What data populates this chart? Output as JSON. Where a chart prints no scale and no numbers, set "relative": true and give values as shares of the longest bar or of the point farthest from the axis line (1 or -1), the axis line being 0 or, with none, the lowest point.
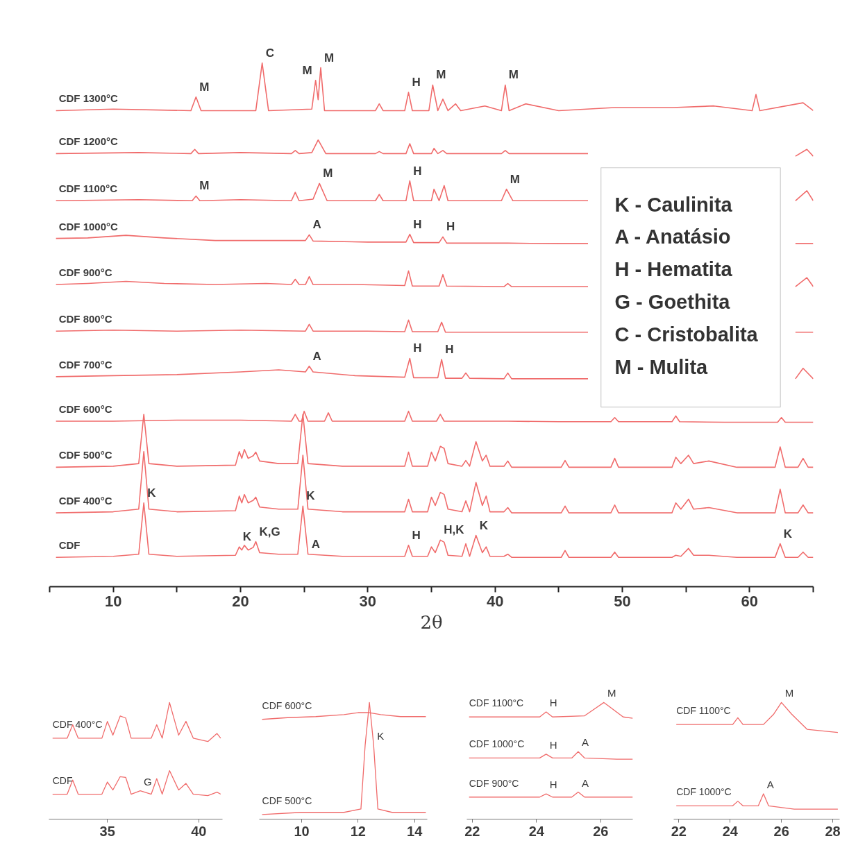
{
  "chart_data": [
    {
      "type": "line",
      "relative": true,
      "tick_labels": "x",
      "xlabel": "2θ",
      "xlim": [
        5,
        65
      ],
      "xticks": [
        {
          "value": 5,
          "label": null
        },
        10,
        {
          "value": 15,
          "label": null
        },
        20,
        {
          "value": 25,
          "label": null
        },
        30,
        {
          "value": 35,
          "label": null
        },
        40,
        {
          "value": 45,
          "label": null
        },
        50,
        {
          "value": 55,
          "label": null
        },
        60,
        {
          "value": 65,
          "label": null
        }
      ],
      "series": [
        {
          "name": "CDF 1300°C",
          "color": "#f06b6b",
          "x": [
            5.5,
            10,
            16.1,
            16.5,
            16.9,
            21.2,
            21.7,
            22.2,
            25.6,
            25.9,
            26.1,
            26.3,
            26.6,
            30.6,
            30.9,
            31.2,
            32.9,
            33.2,
            33.5,
            34.8,
            35.1,
            35.5,
            35.9,
            36.3,
            36.9,
            37.3,
            39.2,
            40.5,
            40.8,
            41.1,
            42.4,
            45,
            49.4,
            54,
            57.2,
            60.2,
            60.5,
            60.8,
            64.2,
            65
          ],
          "values": [
            0.909,
            0.912,
            0.909,
            0.935,
            0.909,
            0.909,
            1.0,
            0.909,
            0.912,
            0.967,
            0.93,
            0.991,
            0.909,
            0.909,
            0.922,
            0.909,
            0.909,
            0.944,
            0.909,
            0.909,
            0.958,
            0.909,
            0.931,
            0.909,
            0.922,
            0.909,
            0.918,
            0.909,
            0.958,
            0.909,
            0.922,
            0.909,
            0.915,
            0.915,
            0.918,
            0.909,
            0.94,
            0.909,
            0.924,
            0.909
          ]
        },
        {
          "name": "CDF 1200°C",
          "color": "#f06b6b",
          "x": [
            5.5,
            12,
            16.1,
            16.4,
            16.7,
            20,
            24.0,
            24.3,
            24.6,
            25.6,
            26.1,
            26.7,
            30.6,
            30.9,
            31.2,
            33.0,
            33.3,
            33.6,
            35.0,
            35.2,
            35.5,
            35.9,
            36.2,
            40.5,
            40.8,
            41.1,
            45,
            47.3,
            47.5,
            63.6,
            64.5,
            65
          ],
          "values": [
            0.827,
            0.829,
            0.827,
            0.835,
            0.827,
            0.829,
            0.827,
            0.833,
            0.827,
            0.829,
            0.853,
            0.827,
            0.827,
            0.831,
            0.827,
            0.827,
            0.846,
            0.827,
            0.827,
            0.837,
            0.827,
            0.833,
            0.827,
            0.827,
            0.833,
            0.827,
            0.827,
            0.827,
            null,
            0.822,
            0.835,
            0.822
          ]
        },
        {
          "name": "CDF 1100°C",
          "color": "#f06b6b",
          "x": [
            5.5,
            12,
            16.2,
            16.5,
            16.8,
            20,
            24.0,
            24.3,
            24.6,
            25.7,
            26.2,
            26.8,
            30.6,
            30.9,
            31.2,
            33.0,
            33.3,
            33.6,
            35.0,
            35.2,
            35.6,
            36.0,
            36.3,
            40.5,
            40.9,
            41.4,
            45,
            47.3,
            47.5,
            63.6,
            64.5,
            65
          ],
          "values": [
            0.737,
            0.739,
            0.737,
            0.746,
            0.737,
            0.739,
            0.737,
            0.753,
            0.737,
            0.74,
            0.77,
            0.737,
            0.737,
            0.749,
            0.737,
            0.737,
            0.775,
            0.737,
            0.737,
            0.759,
            0.737,
            0.766,
            0.737,
            0.737,
            0.759,
            0.737,
            0.737,
            0.737,
            null,
            0.737,
            0.756,
            0.737
          ]
        },
        {
          "name": "CDF 1000°C",
          "color": "#f06b6b",
          "x": [
            5.5,
            8,
            11,
            14,
            18,
            22,
            25.1,
            25.4,
            25.7,
            30,
            33.0,
            33.3,
            33.6,
            35.6,
            35.9,
            36.2,
            41,
            45,
            47.3,
            47.5,
            63.6,
            65
          ],
          "values": [
            0.665,
            0.666,
            0.671,
            0.666,
            0.661,
            0.661,
            0.661,
            0.672,
            0.66,
            0.658,
            0.658,
            0.673,
            0.657,
            0.657,
            0.668,
            0.656,
            0.656,
            0.655,
            0.655,
            null,
            0.655,
            0.655
          ]
        },
        {
          "name": "CDF 900°C",
          "color": "#f06b6b",
          "x": [
            5.5,
            8,
            11,
            14,
            18,
            22,
            24.0,
            24.3,
            24.6,
            25.1,
            25.4,
            25.7,
            29,
            32.9,
            33.2,
            33.5,
            35.6,
            35.9,
            36.2,
            40.7,
            41.0,
            41.3,
            45,
            47.3,
            47.5,
            63.6,
            64.5,
            65
          ],
          "values": [
            0.577,
            0.579,
            0.583,
            0.579,
            0.577,
            0.579,
            0.577,
            0.587,
            0.577,
            0.577,
            0.592,
            0.577,
            0.577,
            0.575,
            0.603,
            0.574,
            0.574,
            0.596,
            0.574,
            0.573,
            0.579,
            0.573,
            0.573,
            0.573,
            null,
            0.573,
            0.59,
            0.573
          ]
        },
        {
          "name": "CDF 800°C",
          "color": "#f06b6b",
          "x": [
            5.5,
            10,
            15,
            20,
            25.1,
            25.4,
            25.7,
            30,
            32.9,
            33.2,
            33.5,
            35.5,
            35.8,
            36.1,
            41,
            47.3,
            47.5,
            63.6,
            65
          ],
          "values": [
            0.488,
            0.49,
            0.488,
            0.49,
            0.488,
            0.501,
            0.488,
            0.488,
            0.487,
            0.509,
            0.487,
            0.487,
            0.505,
            0.486,
            0.486,
            0.486,
            null,
            0.486,
            0.486
          ]
        },
        {
          "name": "CDF 700°C",
          "color": "#f06b6b",
          "x": [
            5.5,
            10,
            15,
            20,
            23,
            25.1,
            25.4,
            25.7,
            29,
            32.9,
            33.3,
            33.6,
            35.5,
            35.8,
            36.1,
            37.4,
            37.7,
            38,
            40.7,
            41,
            41.3,
            45,
            47.3,
            47.5,
            63.6,
            64.2,
            65
          ],
          "values": [
            0.401,
            0.403,
            0.405,
            0.41,
            0.414,
            0.41,
            0.421,
            0.41,
            0.403,
            0.4,
            0.436,
            0.399,
            0.399,
            0.434,
            0.398,
            0.398,
            0.408,
            0.398,
            0.397,
            0.408,
            0.397,
            0.397,
            0.397,
            null,
            0.397,
            0.417,
            0.397
          ]
        },
        {
          "name": "CDF 600°C",
          "color": "#f06b6b",
          "x": [
            5.5,
            10,
            15,
            20,
            24.0,
            24.3,
            24.6,
            24.8,
            25.0,
            25.3,
            26.6,
            26.9,
            27.2,
            30,
            32.9,
            33.2,
            33.5,
            35.4,
            35.7,
            36.0,
            41,
            45,
            49.1,
            49.4,
            49.7,
            53.9,
            54.2,
            54.5,
            58,
            62.2,
            62.5,
            62.8,
            65
          ],
          "values": [
            0.316,
            0.316,
            0.318,
            0.318,
            0.316,
            0.329,
            0.316,
            0.316,
            0.335,
            0.316,
            0.316,
            0.332,
            0.316,
            0.316,
            0.316,
            0.335,
            0.316,
            0.316,
            0.329,
            0.316,
            0.316,
            0.315,
            0.315,
            0.323,
            0.315,
            0.315,
            0.326,
            0.315,
            0.314,
            0.314,
            0.323,
            0.314,
            0.314
          ]
        },
        {
          "name": "CDF 500°C",
          "color": "#f06b6b",
          "x": [
            5.5,
            10,
            12.0,
            12.4,
            12.8,
            15,
            19.6,
            19.9,
            20.1,
            20.3,
            20.6,
            21.0,
            21.2,
            21.5,
            23,
            24.5,
            24.9,
            25.3,
            28,
            32.9,
            33.2,
            33.5,
            34.7,
            35.0,
            35.3,
            35.7,
            36.0,
            36.3,
            37.4,
            37.7,
            38.0,
            38.5,
            39.0,
            39.3,
            39.6,
            40.7,
            41,
            41.3,
            45.2,
            45.5,
            45.8,
            49.1,
            49.4,
            49.7,
            53.9,
            54.2,
            54.6,
            55.2,
            55.6,
            56.8,
            59,
            62.0,
            62.4,
            62.8,
            63.8,
            64.2,
            64.6,
            65
          ],
          "values": [
            0.228,
            0.23,
            0.235,
            0.329,
            0.235,
            0.23,
            0.232,
            0.258,
            0.245,
            0.262,
            0.245,
            0.25,
            0.257,
            0.24,
            0.235,
            0.235,
            0.329,
            0.235,
            0.23,
            0.23,
            0.257,
            0.23,
            0.23,
            0.257,
            0.24,
            0.268,
            0.264,
            0.235,
            0.23,
            0.241,
            0.23,
            0.277,
            0.24,
            0.251,
            0.23,
            0.23,
            0.24,
            0.228,
            0.228,
            0.241,
            0.228,
            0.228,
            0.245,
            0.228,
            0.228,
            0.247,
            0.235,
            0.251,
            0.235,
            0.24,
            0.228,
            0.228,
            0.267,
            0.228,
            0.228,
            0.245,
            0.228,
            0.228
          ]
        },
        {
          "name": "CDF 400°C",
          "color": "#f06b6b",
          "x": [
            5.5,
            10,
            12.0,
            12.4,
            12.8,
            15,
            19.6,
            19.9,
            20.1,
            20.3,
            20.6,
            21.0,
            21.2,
            21.5,
            23,
            24.5,
            24.9,
            25.3,
            28,
            32.9,
            33.2,
            33.5,
            34.7,
            35.0,
            35.3,
            35.7,
            36.0,
            36.3,
            37.4,
            37.7,
            38.0,
            38.5,
            39.0,
            39.3,
            39.6,
            40.7,
            41,
            41.3,
            45.2,
            45.5,
            45.8,
            49.1,
            49.4,
            49.7,
            53.9,
            54.2,
            54.6,
            55.2,
            55.6,
            56.8,
            59,
            62.0,
            62.4,
            62.8,
            63.8,
            64.2,
            64.6,
            65
          ],
          "values": [
            0.141,
            0.143,
            0.148,
            0.258,
            0.148,
            0.143,
            0.145,
            0.173,
            0.16,
            0.176,
            0.16,
            0.165,
            0.171,
            0.152,
            0.148,
            0.148,
            0.251,
            0.148,
            0.143,
            0.143,
            0.167,
            0.143,
            0.143,
            0.171,
            0.155,
            0.18,
            0.176,
            0.148,
            0.143,
            0.164,
            0.143,
            0.199,
            0.155,
            0.173,
            0.143,
            0.143,
            0.151,
            0.141,
            0.141,
            0.154,
            0.141,
            0.141,
            0.156,
            0.141,
            0.141,
            0.16,
            0.148,
            0.167,
            0.148,
            0.151,
            0.141,
            0.141,
            0.186,
            0.141,
            0.141,
            0.156,
            0.141,
            0.141
          ]
        },
        {
          "name": "CDF",
          "color": "#f06b6b",
          "x": [
            5.5,
            10,
            12.0,
            12.4,
            12.8,
            15,
            19.6,
            19.9,
            20.1,
            20.3,
            20.6,
            21.0,
            21.2,
            21.5,
            23,
            24.5,
            24.9,
            25.3,
            28,
            32.9,
            33.2,
            33.5,
            34.7,
            35.0,
            35.3,
            35.7,
            36.0,
            36.3,
            37.4,
            37.7,
            38.0,
            38.5,
            39.0,
            39.3,
            39.6,
            40.7,
            41,
            41.3,
            45.2,
            45.5,
            45.8,
            49.1,
            49.4,
            49.7,
            53.9,
            54.2,
            54.6,
            55.2,
            55.6,
            56.8,
            59,
            62.0,
            62.4,
            62.8,
            63.8,
            64.2,
            64.6,
            65
          ],
          "values": [
            0.056,
            0.058,
            0.062,
            0.16,
            0.062,
            0.058,
            0.06,
            0.076,
            0.07,
            0.079,
            0.07,
            0.075,
            0.086,
            0.065,
            0.062,
            0.062,
            0.154,
            0.062,
            0.058,
            0.058,
            0.079,
            0.058,
            0.058,
            0.076,
            0.065,
            0.089,
            0.085,
            0.06,
            0.058,
            0.082,
            0.058,
            0.098,
            0.065,
            0.076,
            0.058,
            0.058,
            0.062,
            0.056,
            0.056,
            0.069,
            0.056,
            0.056,
            0.066,
            0.056,
            0.056,
            0.06,
            0.058,
            0.073,
            0.06,
            0.06,
            0.056,
            0.056,
            0.082,
            0.056,
            0.056,
            0.066,
            0.056,
            0.056
          ]
        }
      ],
      "annotations": [
        {
          "text": "M",
          "x": 16.5,
          "y": 0.935
        },
        {
          "text": "C",
          "x": 21.7,
          "y": 1.0
        },
        {
          "text": "M",
          "x": 25.9,
          "y": 0.967
        },
        {
          "text": "M",
          "x": 26.3,
          "y": 0.991
        },
        {
          "text": "H",
          "x": 33.2,
          "y": 0.944
        },
        {
          "text": "M",
          "x": 35.1,
          "y": 0.958
        },
        {
          "text": "M",
          "x": 40.8,
          "y": 0.958
        },
        {
          "text": "M",
          "x": 16.5,
          "y": 0.746
        },
        {
          "text": "M",
          "x": 26.2,
          "y": 0.77
        },
        {
          "text": "H",
          "x": 33.3,
          "y": 0.775
        },
        {
          "text": "M",
          "x": 40.9,
          "y": 0.759
        },
        {
          "text": "A",
          "x": 25.4,
          "y": 0.672
        },
        {
          "text": "H",
          "x": 33.3,
          "y": 0.673
        },
        {
          "text": "H",
          "x": 35.9,
          "y": 0.668
        },
        {
          "text": "A",
          "x": 25.4,
          "y": 0.421
        },
        {
          "text": "H",
          "x": 33.3,
          "y": 0.436
        },
        {
          "text": "H",
          "x": 35.8,
          "y": 0.434
        },
        {
          "text": "K",
          "x": 12.4,
          "y": 0.16
        },
        {
          "text": "K",
          "x": 19.9,
          "y": 0.076
        },
        {
          "text": "K,G",
          "x": 21.2,
          "y": 0.086
        },
        {
          "text": "K",
          "x": 24.9,
          "y": 0.154
        },
        {
          "text": "A",
          "x": 25.3,
          "y": 0.062
        },
        {
          "text": "H",
          "x": 33.2,
          "y": 0.079
        },
        {
          "text": "H,K",
          "x": 35.7,
          "y": 0.089
        },
        {
          "text": "K",
          "x": 38.5,
          "y": 0.098
        },
        {
          "text": "K",
          "x": 62.4,
          "y": 0.082
        },
        "K - Caulinita",
        "A - Anatásio",
        "H - Hematita",
        "G - Goethita",
        "C - Cristobalita",
        "M - Mulita"
      ]
    },
    {
      "type": "line",
      "relative": true,
      "tick_labels": "x",
      "xlim": [
        31.8,
        41.3
      ],
      "xticks": [
        35,
        40
      ],
      "series": [
        {
          "name": "CDF 400°C",
          "color": "#f06b6b",
          "x": [
            32,
            32.8,
            33.1,
            33.4,
            34.7,
            35,
            35.3,
            35.7,
            36,
            36.3,
            37.4,
            37.7,
            38,
            38.4,
            38.9,
            39.3,
            39.7,
            40.5,
            41,
            41.2
          ],
          "values": [
            0.694,
            0.694,
            0.809,
            0.694,
            0.694,
            0.838,
            0.72,
            0.884,
            0.867,
            0.694,
            0.694,
            0.809,
            0.694,
            1.0,
            0.72,
            0.838,
            0.694,
            0.665,
            0.734,
            0.694
          ]
        },
        {
          "name": "CDF",
          "color": "#f06b6b",
          "x": [
            32,
            32.8,
            33.1,
            33.4,
            34.7,
            35,
            35.3,
            35.7,
            36,
            36.3,
            36.8,
            37.4,
            37.7,
            38,
            38.4,
            38.9,
            39.3,
            39.7,
            40.5,
            41,
            41.2
          ],
          "values": [
            0.214,
            0.214,
            0.335,
            0.214,
            0.214,
            0.318,
            0.25,
            0.364,
            0.358,
            0.214,
            0.243,
            0.214,
            0.347,
            0.214,
            0.416,
            0.25,
            0.306,
            0.214,
            0.202,
            0.231,
            0.214
          ]
        }
      ],
      "annotations": [
        {
          "text": "G",
          "x": 36.8,
          "y": 0.243
        }
      ]
    },
    {
      "type": "line",
      "relative": true,
      "tick_labels": "x",
      "xlim": [
        8.5,
        14.45
      ],
      "xticks": [
        10,
        12,
        14
      ],
      "series": [
        {
          "name": "CDF 600°C",
          "color": "#f06b6b",
          "x": [
            8.6,
            9.5,
            10.5,
            11.5,
            12,
            12.4,
            12.8,
            13.5,
            14.4
          ],
          "values": [
            0.855,
            0.87,
            0.879,
            0.896,
            0.913,
            0.913,
            0.896,
            0.879,
            0.879
          ]
        },
        {
          "name": "CDF 500°C",
          "color": "#f06b6b",
          "x": [
            8.6,
            10,
            11.5,
            12.1,
            12.25,
            12.4,
            12.55,
            12.7,
            13.2,
            14.4
          ],
          "values": [
            0.04,
            0.058,
            0.058,
            0.087,
            0.636,
            1.0,
            0.636,
            0.087,
            0.058,
            0.058
          ]
        }
      ],
      "annotations": [
        {
          "text": "K",
          "x": 12.55,
          "y": 0.636
        }
      ]
    },
    {
      "type": "line",
      "relative": true,
      "tick_labels": "x",
      "xlim": [
        21.83,
        27.0
      ],
      "xticks": [
        22,
        24,
        26
      ],
      "series": [
        {
          "name": "CDF 1100°C",
          "color": "#f06b6b",
          "x": [
            21.9,
            23,
            24.1,
            24.3,
            24.5,
            25.5,
            26.1,
            26.7,
            27
          ],
          "values": [
            0.876,
            0.876,
            0.876,
            0.919,
            0.876,
            0.886,
            1.0,
            0.876,
            0.865
          ]
        },
        {
          "name": "CDF 1000°C",
          "color": "#f06b6b",
          "x": [
            21.9,
            23,
            24.1,
            24.3,
            24.5,
            25.1,
            25.3,
            25.5,
            26.5,
            27
          ],
          "values": [
            0.524,
            0.524,
            0.524,
            0.557,
            0.524,
            0.524,
            0.578,
            0.524,
            0.514,
            0.514
          ]
        },
        {
          "name": "CDF 900°C",
          "color": "#f06b6b",
          "x": [
            21.9,
            23,
            24.1,
            24.3,
            24.5,
            25.1,
            25.3,
            25.5,
            26.5,
            27
          ],
          "values": [
            0.189,
            0.189,
            0.189,
            0.216,
            0.189,
            0.189,
            0.232,
            0.189,
            0.189,
            0.189
          ]
        }
      ],
      "annotations": [
        {
          "text": "H",
          "x": 24.3,
          "y": 0.919
        },
        {
          "text": "M",
          "x": 26.1,
          "y": 1.0
        },
        {
          "text": "H",
          "x": 24.3,
          "y": 0.557
        },
        {
          "text": "A",
          "x": 25.3,
          "y": 0.578
        },
        {
          "text": "H",
          "x": 24.3,
          "y": 0.216
        },
        {
          "text": "A",
          "x": 25.3,
          "y": 0.232
        }
      ]
    },
    {
      "type": "line",
      "relative": true,
      "tick_labels": "x",
      "xlim": [
        21.8,
        28.27
      ],
      "xticks": [
        22,
        24,
        26,
        28
      ],
      "series": [
        {
          "name": "CDF 1100°C",
          "color": "#f06b6b",
          "x": [
            21.9,
            23,
            24.1,
            24.3,
            24.5,
            25.3,
            25.7,
            26,
            26.4,
            27,
            28.2
          ],
          "values": [
            0.811,
            0.811,
            0.811,
            0.869,
            0.811,
            0.811,
            0.9,
            1.0,
            0.9,
            0.77,
            0.743
          ]
        },
        {
          "name": "CDF 1000°C",
          "color": "#f06b6b",
          "x": [
            21.9,
            23,
            24.1,
            24.3,
            24.5,
            25.1,
            25.3,
            25.5,
            26.5,
            28.2
          ],
          "values": [
            0.114,
            0.114,
            0.114,
            0.154,
            0.114,
            0.114,
            0.217,
            0.114,
            0.086,
            0.086
          ]
        }
      ],
      "annotations": [
        {
          "text": "M",
          "x": 26,
          "y": 1.0
        },
        {
          "text": "A",
          "x": 25.3,
          "y": 0.217
        }
      ]
    }
  ]
}
